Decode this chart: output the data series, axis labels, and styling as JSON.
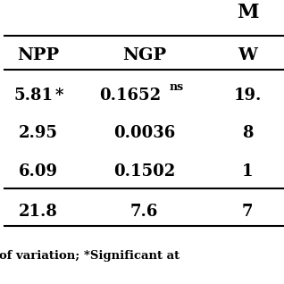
{
  "title_row": "M",
  "header1": [
    "NPP",
    "NGP",
    "W"
  ],
  "rows": [
    [
      "5.81*",
      "0.1652ns",
      "19."
    ],
    [
      "2.95",
      "0.0036",
      "8"
    ],
    [
      "6.09",
      "0.1502",
      "1"
    ],
    [
      "21.8",
      "7.6",
      "7"
    ]
  ],
  "footer": "of variation; *Significant at",
  "bg_color": "#ffffff",
  "text_color": "#000000",
  "font_size": 13,
  "header_font_size": 14,
  "line_width": 1.5
}
